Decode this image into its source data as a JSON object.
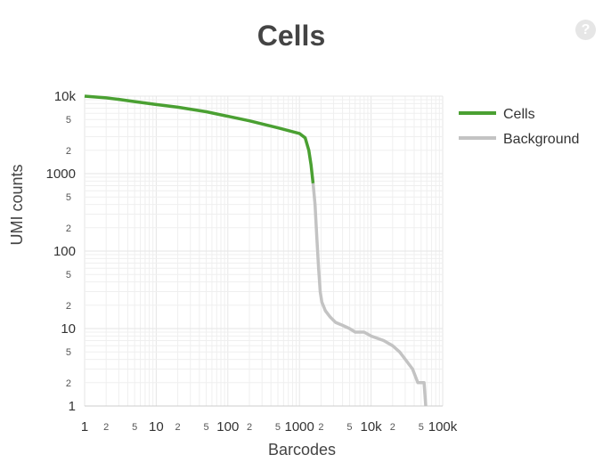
{
  "chart_data": {
    "type": "line",
    "title": "Cells",
    "xlabel": "Barcodes",
    "ylabel": "UMI counts",
    "x_scale": "log",
    "y_scale": "log",
    "xlim": [
      1,
      100000
    ],
    "ylim": [
      1,
      10000
    ],
    "grid": true,
    "legend_position": "right",
    "x_major_ticks": [
      {
        "value": 1,
        "label": "1"
      },
      {
        "value": 10,
        "label": "10"
      },
      {
        "value": 100,
        "label": "100"
      },
      {
        "value": 1000,
        "label": "1000"
      },
      {
        "value": 10000,
        "label": "10k"
      },
      {
        "value": 100000,
        "label": "100k"
      }
    ],
    "x_minor_tick_labels": [
      "2",
      "5"
    ],
    "y_major_ticks": [
      {
        "value": 1,
        "label": "1"
      },
      {
        "value": 10,
        "label": "10"
      },
      {
        "value": 100,
        "label": "100"
      },
      {
        "value": 1000,
        "label": "1000"
      },
      {
        "value": 10000,
        "label": "10k"
      }
    ],
    "y_minor_tick_labels": [
      "2",
      "5"
    ],
    "series": [
      {
        "name": "Cells",
        "color": "#4aa032",
        "points": [
          [
            1,
            10000
          ],
          [
            2,
            9500
          ],
          [
            3,
            9100
          ],
          [
            5,
            8500
          ],
          [
            10,
            7800
          ],
          [
            20,
            7200
          ],
          [
            50,
            6300
          ],
          [
            100,
            5500
          ],
          [
            200,
            4800
          ],
          [
            500,
            3900
          ],
          [
            1000,
            3300
          ],
          [
            1200,
            2900
          ],
          [
            1350,
            2000
          ],
          [
            1450,
            1300
          ],
          [
            1550,
            750
          ]
        ]
      },
      {
        "name": "Background",
        "color": "#c3c3c3",
        "points": [
          [
            1550,
            750
          ],
          [
            1650,
            400
          ],
          [
            1750,
            150
          ],
          [
            1850,
            60
          ],
          [
            1950,
            30
          ],
          [
            2050,
            22
          ],
          [
            2300,
            17
          ],
          [
            2700,
            14
          ],
          [
            3200,
            12
          ],
          [
            4000,
            11
          ],
          [
            5000,
            10
          ],
          [
            6000,
            9
          ],
          [
            8000,
            9
          ],
          [
            10000,
            8
          ],
          [
            15000,
            7
          ],
          [
            20000,
            6
          ],
          [
            25000,
            5
          ],
          [
            30000,
            4
          ],
          [
            38000,
            3
          ],
          [
            45000,
            2
          ],
          [
            55000,
            2
          ],
          [
            58000,
            1
          ]
        ]
      }
    ]
  }
}
